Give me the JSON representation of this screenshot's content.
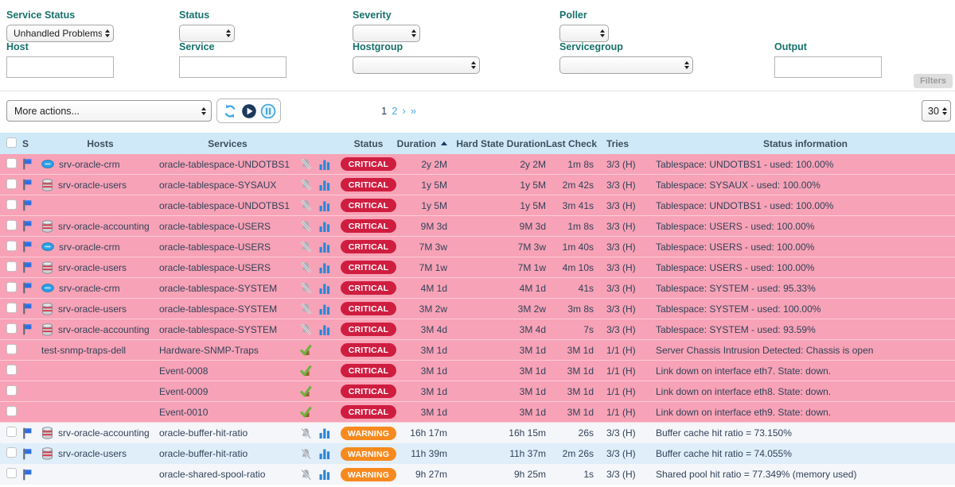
{
  "colors": {
    "label_teal": "#17716b",
    "header_bg": "#cfe9f8",
    "critical_row": "#f7a2b6",
    "critical_badge": "#cf1d40",
    "warning_badge": "#f78a1e",
    "accent_blue": "#49a9e2",
    "text_dark": "#32425a"
  },
  "filters": {
    "fields": [
      {
        "key": "service_status",
        "label": "Service Status",
        "type": "select",
        "value": "Unhandled Problems"
      },
      {
        "key": "status",
        "label": "Status",
        "type": "select",
        "value": ""
      },
      {
        "key": "severity",
        "label": "Severity",
        "type": "select",
        "value": ""
      },
      {
        "key": "poller",
        "label": "Poller",
        "type": "select",
        "value": ""
      },
      {
        "key": "host",
        "label": "Host",
        "type": "input",
        "value": ""
      },
      {
        "key": "service",
        "label": "Service",
        "type": "input",
        "value": ""
      },
      {
        "key": "hostgroup",
        "label": "Hostgroup",
        "type": "select",
        "value": ""
      },
      {
        "key": "servicegroup",
        "label": "Servicegroup",
        "type": "select",
        "value": ""
      },
      {
        "key": "output",
        "label": "Output",
        "type": "input",
        "value": ""
      }
    ],
    "filters_button": "Filters"
  },
  "toolbar": {
    "more_actions": "More actions...",
    "pagination": [
      {
        "label": "1",
        "current": true
      },
      {
        "label": "2",
        "current": false
      },
      {
        "label": "›",
        "current": false
      },
      {
        "label": "»",
        "current": false
      }
    ],
    "page_size": "30"
  },
  "table": {
    "headers": {
      "s": "S",
      "hosts": "Hosts",
      "services": "Services",
      "status": "Status",
      "duration": "Duration",
      "hard_state_duration": "Hard State Duration",
      "last_check": "Last Check",
      "tries": "Tries",
      "status_information": "Status information"
    },
    "rows": [
      {
        "flag": true,
        "host_icon": "crm",
        "host": "srv-oracle-crm",
        "service": "oracle-tablespace-UNDOTBS1",
        "notif": "muted-bell",
        "chart": true,
        "status": "CRITICAL",
        "duration": "2y 2M",
        "hard": "2y 2M",
        "last_check": "1m 8s",
        "tries": "3/3 (H)",
        "info": "Tablespace: UNDOTBS1 - used: 100.00%",
        "bg": "pink"
      },
      {
        "flag": true,
        "host_icon": "db",
        "host": "srv-oracle-users",
        "service": "oracle-tablespace-SYSAUX",
        "notif": "muted-bell",
        "chart": true,
        "status": "CRITICAL",
        "duration": "1y 5M",
        "hard": "1y 5M",
        "last_check": "2m 42s",
        "tries": "3/3 (H)",
        "info": "Tablespace: SYSAUX - used: 100.00%",
        "bg": "pink"
      },
      {
        "flag": true,
        "host_icon": "",
        "host": "",
        "service": "oracle-tablespace-UNDOTBS1",
        "notif": "muted-bell",
        "chart": true,
        "status": "CRITICAL",
        "duration": "1y 5M",
        "hard": "1y 5M",
        "last_check": "3m 41s",
        "tries": "3/3 (H)",
        "info": "Tablespace: UNDOTBS1 - used: 100.00%",
        "bg": "pink"
      },
      {
        "flag": true,
        "host_icon": "db",
        "host": "srv-oracle-accounting",
        "service": "oracle-tablespace-USERS",
        "notif": "muted-bell",
        "chart": true,
        "status": "CRITICAL",
        "duration": "9M 3d",
        "hard": "9M 3d",
        "last_check": "1m 8s",
        "tries": "3/3 (H)",
        "info": "Tablespace: USERS - used: 100.00%",
        "bg": "pink"
      },
      {
        "flag": true,
        "host_icon": "crm",
        "host": "srv-oracle-crm",
        "service": "oracle-tablespace-USERS",
        "notif": "muted-bell",
        "chart": true,
        "status": "CRITICAL",
        "duration": "7M 3w",
        "hard": "7M 3w",
        "last_check": "1m 40s",
        "tries": "3/3 (H)",
        "info": "Tablespace: USERS - used: 100.00%",
        "bg": "pink"
      },
      {
        "flag": true,
        "host_icon": "db",
        "host": "srv-oracle-users",
        "service": "oracle-tablespace-USERS",
        "notif": "muted-bell",
        "chart": true,
        "status": "CRITICAL",
        "duration": "7M 1w",
        "hard": "7M 1w",
        "last_check": "4m 10s",
        "tries": "3/3 (H)",
        "info": "Tablespace: USERS - used: 100.00%",
        "bg": "pink"
      },
      {
        "flag": true,
        "host_icon": "crm",
        "host": "srv-oracle-crm",
        "service": "oracle-tablespace-SYSTEM",
        "notif": "muted-bell",
        "chart": true,
        "status": "CRITICAL",
        "duration": "4M 1d",
        "hard": "4M 1d",
        "last_check": "41s",
        "tries": "3/3 (H)",
        "info": "Tablespace: SYSTEM - used: 95.33%",
        "bg": "pink"
      },
      {
        "flag": true,
        "host_icon": "db",
        "host": "srv-oracle-users",
        "service": "oracle-tablespace-SYSTEM",
        "notif": "muted-bell",
        "chart": true,
        "status": "CRITICAL",
        "duration": "3M 2w",
        "hard": "3M 2w",
        "last_check": "3m 8s",
        "tries": "3/3 (H)",
        "info": "Tablespace: SYSTEM - used: 100.00%",
        "bg": "pink"
      },
      {
        "flag": true,
        "host_icon": "db",
        "host": "srv-oracle-accounting",
        "service": "oracle-tablespace-SYSTEM",
        "notif": "muted-bell",
        "chart": true,
        "status": "CRITICAL",
        "duration": "3M 4d",
        "hard": "3M 4d",
        "last_check": "7s",
        "tries": "3/3 (H)",
        "info": "Tablespace: SYSTEM - used: 93.59%",
        "bg": "pink"
      },
      {
        "flag": false,
        "host_icon": "",
        "host": "test-snmp-traps-dell",
        "service": "Hardware-SNMP-Traps",
        "notif": "passive-check",
        "chart": false,
        "status": "CRITICAL",
        "duration": "3M 1d",
        "hard": "3M 1d",
        "last_check": "3M 1d",
        "tries": "1/1 (H)",
        "info": "Server Chassis Intrusion Detected: Chassis is open",
        "bg": "pink"
      },
      {
        "flag": false,
        "host_icon": "",
        "host": "",
        "service": "Event-0008",
        "notif": "passive-check",
        "chart": false,
        "status": "CRITICAL",
        "duration": "3M 1d",
        "hard": "3M 1d",
        "last_check": "3M 1d",
        "tries": "1/1 (H)",
        "info": "Link down on interface eth7. State: down.",
        "bg": "pink"
      },
      {
        "flag": false,
        "host_icon": "",
        "host": "",
        "service": "Event-0009",
        "notif": "passive-check",
        "chart": false,
        "status": "CRITICAL",
        "duration": "3M 1d",
        "hard": "3M 1d",
        "last_check": "3M 1d",
        "tries": "1/1 (H)",
        "info": "Link down on interface eth8. State: down.",
        "bg": "pink"
      },
      {
        "flag": false,
        "host_icon": "",
        "host": "",
        "service": "Event-0010",
        "notif": "passive-check",
        "chart": false,
        "status": "CRITICAL",
        "duration": "3M 1d",
        "hard": "3M 1d",
        "last_check": "3M 1d",
        "tries": "1/1 (H)",
        "info": "Link down on interface eth9. State: down.",
        "bg": "pink"
      },
      {
        "flag": true,
        "host_icon": "db",
        "host": "srv-oracle-accounting",
        "service": "oracle-buffer-hit-ratio",
        "notif": "muted-bell",
        "chart": true,
        "status": "WARNING",
        "duration": "16h 17m",
        "hard": "16h 15m",
        "last_check": "26s",
        "tries": "3/3 (H)",
        "info": "Buffer cache hit ratio = 73.150%",
        "bg": "light"
      },
      {
        "flag": true,
        "host_icon": "db",
        "host": "srv-oracle-users",
        "service": "oracle-buffer-hit-ratio",
        "notif": "muted-bell",
        "chart": true,
        "status": "WARNING",
        "duration": "11h 39m",
        "hard": "11h 37m",
        "last_check": "2m 26s",
        "tries": "3/3 (H)",
        "info": "Buffer cache hit ratio = 74.055%",
        "bg": "blue"
      },
      {
        "flag": true,
        "host_icon": "",
        "host": "",
        "service": "oracle-shared-spool-ratio",
        "notif": "muted-bell",
        "chart": true,
        "status": "WARNING",
        "duration": "9h 27m",
        "hard": "9h 25m",
        "last_check": "1s",
        "tries": "3/3 (H)",
        "info": "Shared pool hit ratio = 77.349% (memory used)",
        "bg": "light"
      }
    ]
  }
}
